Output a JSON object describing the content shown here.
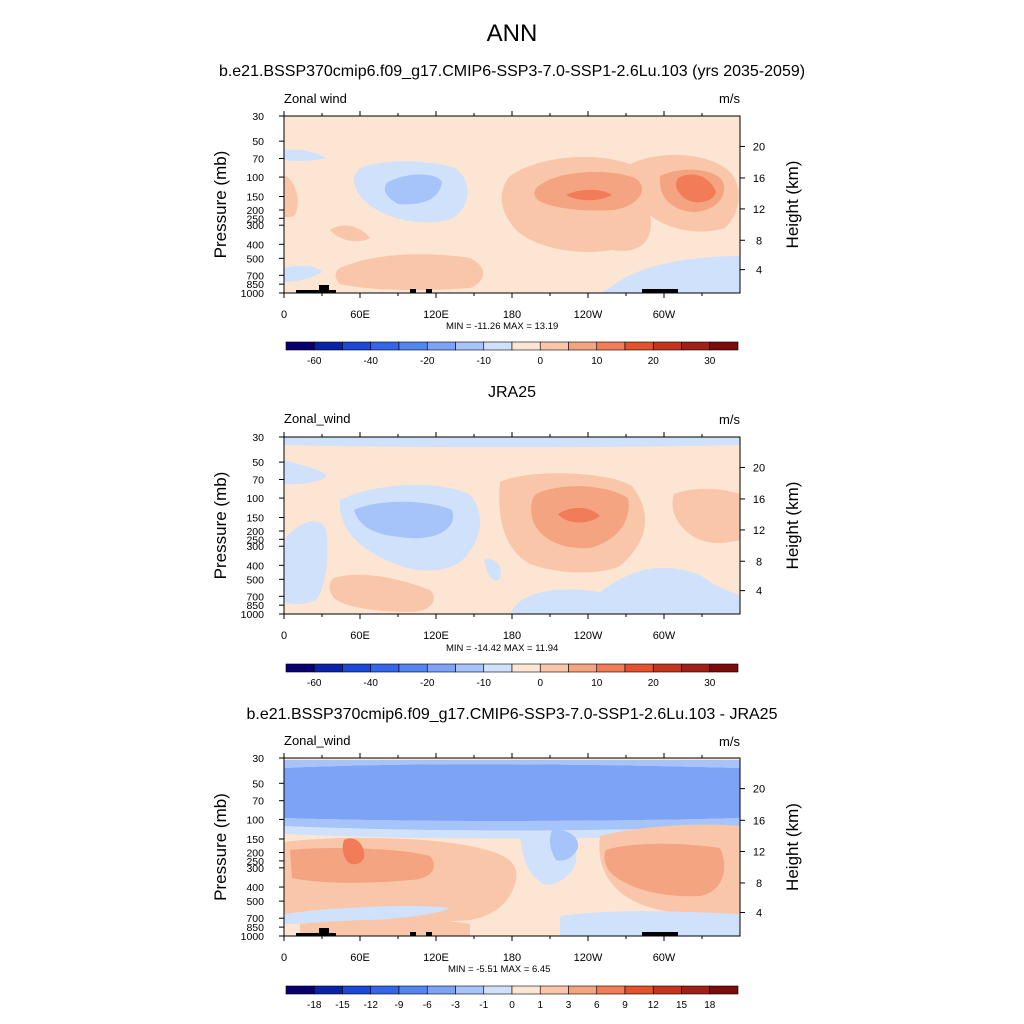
{
  "page_title": "ANN",
  "chart_data": [
    {
      "type": "heatmap",
      "title": "b.e21.BSSP370cmip6.f09_g17.CMIP6-SSP3-7.0-SSP1-2.6Lu.103 (yrs 2035-2059)",
      "variable_label": "Zonal wind",
      "units_label": "m/s",
      "xlabel": "",
      "ylabel": "Pressure (mb)",
      "ylabel_right": "Height (km)",
      "x_tick_labels": [
        "0",
        "60E",
        "120E",
        "180",
        "120W",
        "60W"
      ],
      "y_tick_labels": [
        "30",
        "50",
        "70",
        "100",
        "150",
        "200",
        "250",
        "300",
        "400",
        "500",
        "700",
        "850",
        "1000"
      ],
      "y_right_tick_labels": [
        "20",
        "16",
        "12",
        "8",
        "4"
      ],
      "ylim": [
        1000,
        30
      ],
      "stats_text": "MIN = -11.26  MAX =  13.19",
      "min": -11.26,
      "max": 13.19,
      "colorbar_labels": [
        "-60",
        "-40",
        "-20",
        "-10",
        "0",
        "10",
        "20",
        "30"
      ]
    },
    {
      "type": "heatmap",
      "title": "JRA25",
      "variable_label": "Zonal_wind",
      "units_label": "m/s",
      "xlabel": "",
      "ylabel": "Pressure (mb)",
      "ylabel_right": "Height (km)",
      "x_tick_labels": [
        "0",
        "60E",
        "120E",
        "180",
        "120W",
        "60W"
      ],
      "y_tick_labels": [
        "30",
        "50",
        "70",
        "100",
        "150",
        "200",
        "250",
        "300",
        "400",
        "500",
        "700",
        "850",
        "1000"
      ],
      "y_right_tick_labels": [
        "20",
        "16",
        "12",
        "8",
        "4"
      ],
      "ylim": [
        1000,
        30
      ],
      "stats_text": "MIN = -14.42  MAX =  11.94",
      "min": -14.42,
      "max": 11.94,
      "colorbar_labels": [
        "-60",
        "-40",
        "-20",
        "-10",
        "0",
        "10",
        "20",
        "30"
      ]
    },
    {
      "type": "heatmap",
      "title": "b.e21.BSSP370cmip6.f09_g17.CMIP6-SSP3-7.0-SSP1-2.6Lu.103 - JRA25",
      "variable_label": "Zonal_wind",
      "units_label": "m/s",
      "xlabel": "",
      "ylabel": "Pressure (mb)",
      "ylabel_right": "Height (km)",
      "x_tick_labels": [
        "0",
        "60E",
        "120E",
        "180",
        "120W",
        "60W"
      ],
      "y_tick_labels": [
        "30",
        "50",
        "70",
        "100",
        "150",
        "200",
        "250",
        "300",
        "400",
        "500",
        "700",
        "850",
        "1000"
      ],
      "y_right_tick_labels": [
        "20",
        "16",
        "12",
        "8",
        "4"
      ],
      "ylim": [
        1000,
        30
      ],
      "stats_text": "MIN =  -5.51  MAX =   6.45",
      "min": -5.51,
      "max": 6.45,
      "colorbar_labels": [
        "-18",
        "-15",
        "-12",
        "-9",
        "-6",
        "-3",
        "-1",
        "0",
        "1",
        "3",
        "6",
        "9",
        "12",
        "15",
        "18"
      ]
    }
  ],
  "colors": {
    "palette": [
      "#08006f",
      "#0a22a8",
      "#1c48d6",
      "#3565e8",
      "#5585f0",
      "#7da3f7",
      "#a6c3fa",
      "#cfe1fb",
      "#fde5d3",
      "#f9c6aa",
      "#f5a481",
      "#f17c57",
      "#e2522f",
      "#c43520",
      "#9e2016",
      "#7a0c0a"
    ],
    "land_mask": "#000000"
  }
}
